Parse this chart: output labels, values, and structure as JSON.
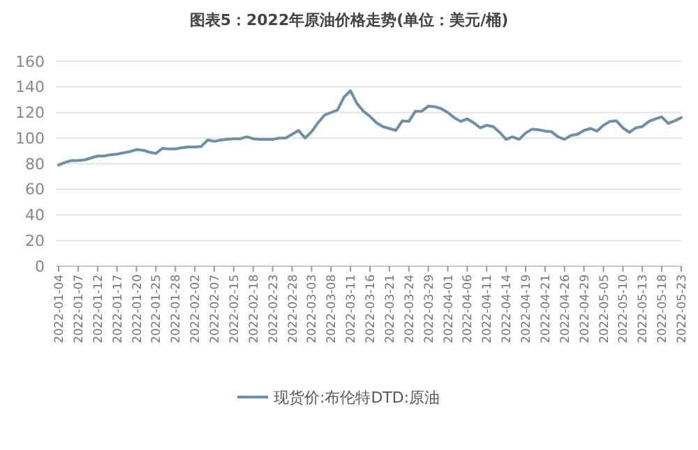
{
  "chart_data": {
    "type": "line",
    "title": "图表5：2022年原油价格走势(单位：美元/桶)",
    "categories": [
      "2022-01-04",
      null,
      null,
      "2022-01-07",
      null,
      null,
      "2022-01-12",
      null,
      null,
      "2022-01-17",
      null,
      null,
      "2022-01-20",
      null,
      null,
      "2022-01-25",
      null,
      null,
      "2022-01-28",
      null,
      null,
      "2022-02-02",
      null,
      null,
      "2022-02-07",
      null,
      null,
      "2022-02-15",
      null,
      null,
      "2022-02-18",
      null,
      null,
      "2022-02-23",
      null,
      null,
      "2022-02-28",
      null,
      null,
      "2022-03-03",
      null,
      null,
      "2022-03-08",
      null,
      null,
      "2022-03-11",
      null,
      null,
      "2022-03-16",
      null,
      null,
      "2022-03-21",
      null,
      null,
      "2022-03-24",
      null,
      null,
      "2022-03-29",
      null,
      null,
      "2022-04-01",
      null,
      null,
      "2022-04-06",
      null,
      null,
      "2022-04-11",
      null,
      null,
      "2022-04-14",
      null,
      null,
      "2022-04-19",
      null,
      null,
      "2022-04-21",
      null,
      null,
      "2022-04-26",
      null,
      null,
      "2022-04-29",
      null,
      null,
      "2022-05-05",
      null,
      null,
      "2022-05-10",
      null,
      null,
      "2022-05-13",
      null,
      null,
      "2022-05-18",
      null,
      null,
      "2022-05-23"
    ],
    "series": [
      {
        "name": "现货价:布伦特DTD:原油",
        "color": "#6f8fa6",
        "values": [
          79,
          81,
          82.5,
          82.5,
          83,
          84.5,
          86,
          86,
          87,
          87.5,
          88.5,
          89.5,
          91,
          90.5,
          89,
          88,
          92,
          91.5,
          91.5,
          92.5,
          93,
          93,
          93.5,
          98.5,
          97.5,
          98.5,
          99,
          99.5,
          99.5,
          101,
          99.5,
          99,
          99,
          99,
          100,
          100,
          103,
          106,
          100,
          105,
          112,
          118,
          120,
          122,
          132,
          137,
          127,
          121,
          117,
          112,
          109,
          107.5,
          106,
          113.5,
          113,
          121,
          121,
          125,
          124.5,
          123,
          120,
          116,
          113,
          115,
          112,
          108,
          110,
          109,
          104.5,
          99,
          101,
          99,
          104,
          107,
          106.5,
          105.5,
          105,
          101,
          99,
          102,
          103,
          106,
          107.5,
          105.5,
          110,
          113,
          113.5,
          108,
          104.5,
          108,
          109,
          113,
          115,
          116.5,
          111.5,
          113.5,
          116
        ]
      }
    ],
    "ylim": [
      0,
      160
    ],
    "yticks": [
      0,
      20,
      40,
      60,
      80,
      100,
      120,
      140,
      160
    ],
    "grid": "y",
    "legend": "bottom",
    "marker": "none",
    "line_style": "solid"
  }
}
